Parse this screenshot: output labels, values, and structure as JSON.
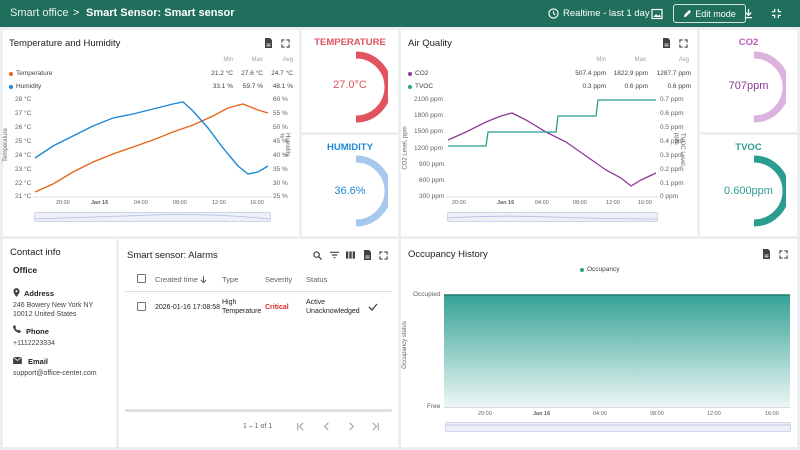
{
  "topbar": {
    "root": "Smart office",
    "separator": ">",
    "current": "Smart Sensor: Smart sensor",
    "timewindow": "Realtime - last 1 day",
    "edit_mode": "Edit mode"
  },
  "temp_hum": {
    "title": "Temperature and Humidity",
    "col_min": "Min",
    "col_max": "Max",
    "col_avg": "Avg",
    "series": [
      {
        "name": "Temperature",
        "color": "#e8651a",
        "min": "21.2 °C",
        "max": "27.6 °C",
        "avg": "24.7 °C"
      },
      {
        "name": "Humidity",
        "color": "#1e88d6",
        "min": "33.1 %",
        "max": "59.7 %",
        "avg": "48.1 %"
      }
    ],
    "yleft": [
      "28 °C",
      "27 °C",
      "26 °C",
      "25 °C",
      "24 °C",
      "23 °C",
      "22 °C",
      "21 °C"
    ],
    "yright": [
      "60 %",
      "55 %",
      "50 %",
      "45 %",
      "40 %",
      "35 %",
      "30 %",
      "25 %"
    ],
    "yleft_label": "Temperature",
    "yright_label": "Humidity, %",
    "xticks": [
      "20:00",
      "Jan 16",
      "04:00",
      "08:00",
      "12:00",
      "16:00"
    ]
  },
  "chart_data": [
    {
      "type": "line",
      "title": "Temperature and Humidity",
      "x": [
        "17:00",
        "08:00",
        "13:00",
        "16:30"
      ],
      "series": [
        {
          "name": "Temperature",
          "unit": "°C",
          "values": [
            21.2,
            25.0,
            27.6,
            27.0
          ]
        },
        {
          "name": "Humidity",
          "unit": "%",
          "values": [
            39.5,
            59.7,
            33.1,
            36.0
          ]
        }
      ],
      "ylim_left": [
        21,
        28
      ],
      "ylim_right": [
        25,
        60
      ]
    },
    {
      "type": "line",
      "title": "Air Quality",
      "x": [
        "17:00",
        "04:00",
        "10:00",
        "14:00",
        "17:00"
      ],
      "series": [
        {
          "name": "CO2",
          "unit": "ppm",
          "values": [
            1300,
            1822.9,
            1100,
            507.4,
            700
          ]
        },
        {
          "name": "TVOC",
          "unit": "ppm",
          "values": [
            0.3,
            0.4,
            0.5,
            0.6,
            0.6
          ]
        }
      ],
      "ylim_left": [
        300,
        2100
      ],
      "ylim_right": [
        0,
        0.7
      ]
    },
    {
      "type": "area",
      "title": "Occupancy History",
      "series": [
        {
          "name": "Occupancy",
          "values": [
            1,
            1,
            1,
            1,
            1
          ]
        }
      ],
      "x": [
        "17:00",
        "20:00",
        "Jan 16",
        "04:00",
        "16:00"
      ],
      "yticks": [
        "Free",
        "Occupied"
      ],
      "ylabel": "Occupancy status"
    }
  ],
  "temperature_gauge": {
    "title": "TEMPERATURE",
    "value": "27.0°C",
    "color": "#e0535f",
    "level": 0.7
  },
  "humidity_gauge": {
    "title": "HUMIDITY",
    "value": "36.6%",
    "color": "#1e88d6",
    "level": 0.37
  },
  "air": {
    "title": "Air Quality",
    "col_min": "Min",
    "col_max": "Max",
    "col_avg": "Avg",
    "series": [
      {
        "name": "CO2",
        "color": "#8e3a96",
        "min": "507.4 ppm",
        "max": "1822.9 ppm",
        "avg": "1287.7 ppm"
      },
      {
        "name": "TVOC",
        "color": "#2a9d8f",
        "min": "0.3 ppm",
        "max": "0.6 ppm",
        "avg": "0.6 ppm"
      }
    ],
    "yleft": [
      "2100 ppm",
      "1800 ppm",
      "1500 ppm",
      "1200 ppm",
      "900 ppm",
      "600 ppm",
      "300 ppm"
    ],
    "yright": [
      "0.7 ppm",
      "0.6 ppm",
      "0.5 ppm",
      "0.4 ppm",
      "0.3 ppm",
      "0.2 ppm",
      "0.1 ppm",
      "0 ppm"
    ],
    "yleft_label": "CO2 Level, ppm",
    "yright_label": "TVOC Level, ppm",
    "xticks": [
      "20:00",
      "Jan 16",
      "04:00",
      "08:00",
      "12:00",
      "16:00"
    ]
  },
  "co2_gauge": {
    "title": "CO2",
    "value": "707ppm",
    "color": "#c77dcc",
    "level": 0.35
  },
  "tvoc_gauge": {
    "title": "TVOC",
    "value": "0.600ppm",
    "color": "#2a9d8f",
    "level": 0.75
  },
  "contact": {
    "title": "Contact info",
    "name": "Office",
    "address_label": "Address",
    "address_line1": "246 Bowery New York NY",
    "address_line2": "10012 United States",
    "phone_label": "Phone",
    "phone": "+1112223334",
    "email_label": "Email",
    "email": "support@office-center.com"
  },
  "alarms": {
    "title": "Smart sensor: Alarms",
    "col_created": "Created time",
    "col_type": "Type",
    "col_severity": "Severity",
    "col_status": "Status",
    "row": {
      "created": "2026-01-16 17:08:58",
      "type_line1": "High",
      "type_line2": "Temperature",
      "severity": "Critical",
      "status_line1": "Active",
      "status_line2": "Unacknowledged"
    },
    "pagination": "1 – 1 of 1"
  },
  "occupancy": {
    "title": "Occupancy History",
    "legend": "Occupancy",
    "color": "#2a9d8f",
    "y_top": "Occupied",
    "y_bottom": "Free",
    "ylabel": "Occupancy status",
    "xticks": [
      "20:00",
      "Jan 16",
      "04:00",
      "08:00",
      "12:00",
      "16:00"
    ]
  }
}
